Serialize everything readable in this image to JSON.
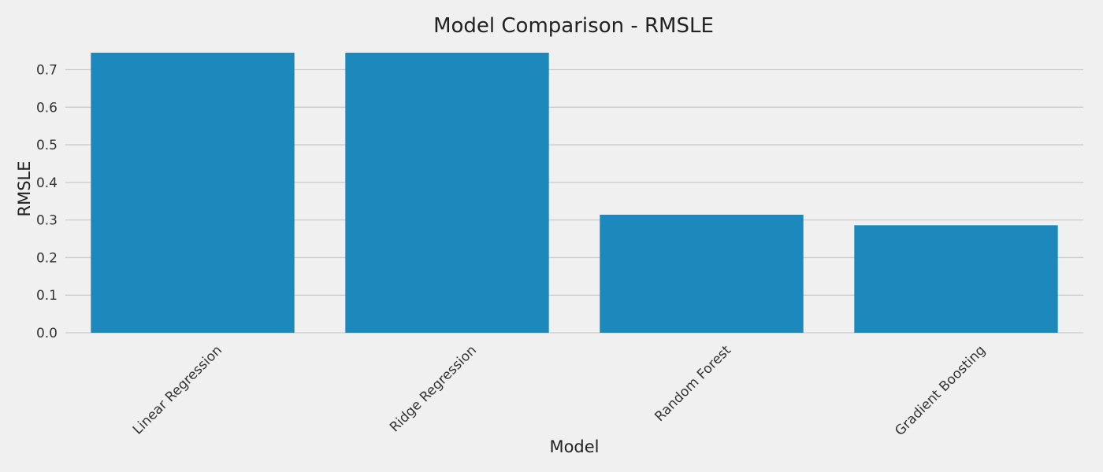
{
  "chart_data": {
    "type": "bar",
    "title": "Model Comparison - RMSLE",
    "xlabel": "Model",
    "ylabel": "RMSLE",
    "categories": [
      "Linear Regression",
      "Ridge Regression",
      "Random Forest",
      "Gradient Boosting"
    ],
    "values": [
      0.75,
      0.75,
      0.314,
      0.286
    ],
    "ylim": [
      0,
      0.745
    ],
    "yticks": [
      "0.0",
      "0.1",
      "0.2",
      "0.3",
      "0.4",
      "0.5",
      "0.6",
      "0.7"
    ],
    "grid": "y",
    "legend": "none",
    "colors": {
      "bar": "#1c88bb",
      "background": "#f0f0f0",
      "grid": "#cbcbcb"
    }
  }
}
